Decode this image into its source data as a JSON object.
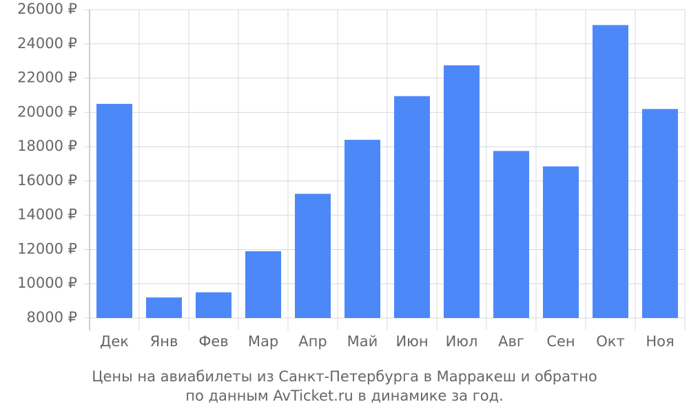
{
  "chart_data": {
    "type": "bar",
    "title_lines": [
      "Цены на авиабилеты из Санкт-Петербурга в Марракеш и обратно",
      "по данным AvTicket.ru в динамике за год."
    ],
    "categories": [
      "Дек",
      "Янв",
      "Фев",
      "Мар",
      "Апр",
      "Май",
      "Июн",
      "Июл",
      "Авг",
      "Сен",
      "Окт",
      "Ноя"
    ],
    "values": [
      20500,
      9200,
      9500,
      11900,
      15250,
      18400,
      20950,
      22750,
      17750,
      16850,
      25100,
      20200
    ],
    "color": "#4d88f9",
    "ylim": [
      8000,
      26000
    ],
    "yticks": [
      {
        "value": 8000,
        "label": "8000 ₽"
      },
      {
        "value": 10000,
        "label": "10000 ₽"
      },
      {
        "value": 12000,
        "label": "12000 ₽"
      },
      {
        "value": 14000,
        "label": "14000 ₽"
      },
      {
        "value": 16000,
        "label": "16000 ₽"
      },
      {
        "value": 18000,
        "label": "18000 ₽"
      },
      {
        "value": 20000,
        "label": "20000 ₽"
      },
      {
        "value": 22000,
        "label": "22000 ₽"
      },
      {
        "value": 24000,
        "label": "24000 ₽"
      },
      {
        "value": 26000,
        "label": "26000 ₽"
      }
    ],
    "grid": true
  }
}
